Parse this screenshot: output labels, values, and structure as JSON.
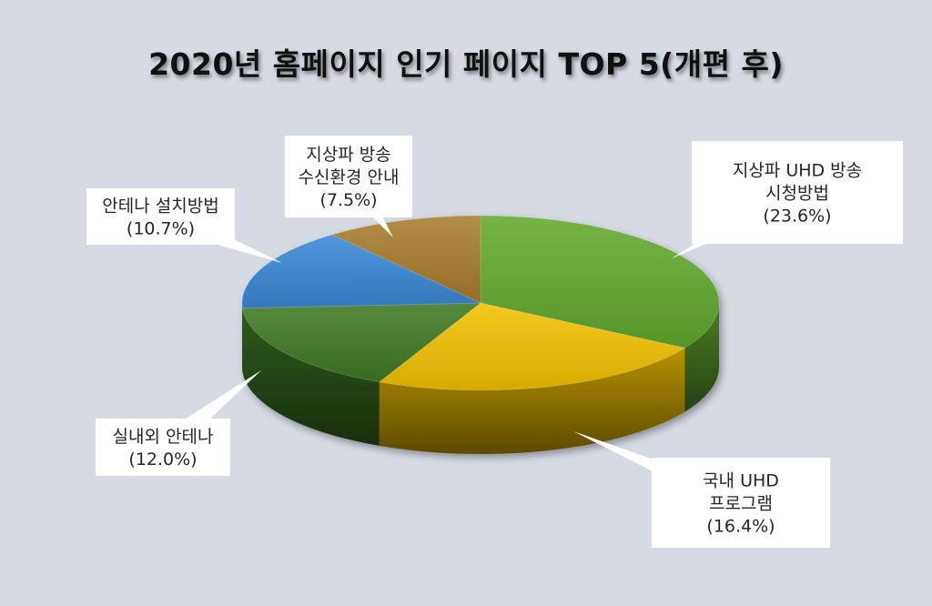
{
  "chart_data": {
    "type": "pie",
    "title": "2020년 홈페이지 인기 페이지 TOP 5(개편 후)",
    "slices": [
      {
        "label": "지상파 UHD 방송 시청방법",
        "label_lines": [
          "지상파 UHD 방송",
          "시청방법"
        ],
        "value": 23.6,
        "value_label": "(23.6%)",
        "color": "#62ab2f"
      },
      {
        "label": "국내 UHD 프로그램",
        "label_lines": [
          "국내 UHD",
          "프로그램"
        ],
        "value": 16.4,
        "value_label": "(16.4%)",
        "color": "#f4c200"
      },
      {
        "label": "실내외 안테나",
        "label_lines": [
          "실내외 안테나"
        ],
        "value": 12.0,
        "value_label": "(12.0%)",
        "color": "#3f7a23"
      },
      {
        "label": "안테나 설치방법",
        "label_lines": [
          "안테나 설치방법"
        ],
        "value": 10.7,
        "value_label": "(10.7%)",
        "color": "#3a88d6"
      },
      {
        "label": "지상파 방송 수신환경 안내",
        "label_lines": [
          "지상파 방송",
          "수신환경 안내"
        ],
        "value": 7.5,
        "value_label": "(7.5%)",
        "color": "#a97d2e"
      }
    ]
  }
}
